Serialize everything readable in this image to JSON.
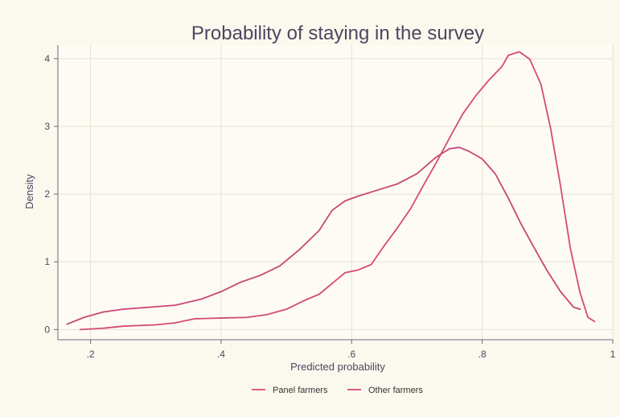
{
  "chart_data": {
    "type": "line",
    "title": "Probability of staying in the survey",
    "xlabel": "Predicted probability",
    "ylabel": "Density",
    "xlim": [
      0.15,
      1.0
    ],
    "ylim": [
      -0.15,
      4.2
    ],
    "xticks": [
      0.2,
      0.4,
      0.6,
      0.8,
      1.0
    ],
    "xtick_labels": [
      ".2",
      ".4",
      ".6",
      ".8",
      "1"
    ],
    "yticks": [
      0,
      1,
      2,
      3,
      4
    ],
    "ytick_labels": [
      "0",
      "1",
      "2",
      "3",
      "4"
    ],
    "grid": true,
    "legend_position": "bottom",
    "colors": {
      "background": "#fbf8ee",
      "panel": "#fdfbf3",
      "grid": "#e6e1d6",
      "axis": "#6e6878",
      "text": "#4f4560",
      "series_1": "#d64b72",
      "series_2": "#c84678"
    },
    "series": [
      {
        "name": "Panel farmers",
        "color": "#d64b72",
        "points": [
          [
            0.184,
            0.0
          ],
          [
            0.22,
            0.02
          ],
          [
            0.25,
            0.05
          ],
          [
            0.3,
            0.07
          ],
          [
            0.33,
            0.1
          ],
          [
            0.36,
            0.16
          ],
          [
            0.4,
            0.17
          ],
          [
            0.44,
            0.18
          ],
          [
            0.47,
            0.22
          ],
          [
            0.5,
            0.3
          ],
          [
            0.53,
            0.44
          ],
          [
            0.55,
            0.52
          ],
          [
            0.57,
            0.68
          ],
          [
            0.59,
            0.84
          ],
          [
            0.61,
            0.88
          ],
          [
            0.63,
            0.96
          ],
          [
            0.65,
            1.24
          ],
          [
            0.67,
            1.5
          ],
          [
            0.69,
            1.78
          ],
          [
            0.71,
            2.13
          ],
          [
            0.73,
            2.47
          ],
          [
            0.75,
            2.83
          ],
          [
            0.77,
            3.18
          ],
          [
            0.79,
            3.45
          ],
          [
            0.81,
            3.68
          ],
          [
            0.83,
            3.88
          ],
          [
            0.84,
            4.05
          ],
          [
            0.857,
            4.1
          ],
          [
            0.873,
            3.99
          ],
          [
            0.89,
            3.62
          ],
          [
            0.905,
            2.96
          ],
          [
            0.92,
            2.12
          ],
          [
            0.935,
            1.2
          ],
          [
            0.95,
            0.54
          ],
          [
            0.962,
            0.18
          ],
          [
            0.972,
            0.12
          ]
        ]
      },
      {
        "name": "Other farmers",
        "color": "#c84678",
        "points": [
          [
            0.164,
            0.08
          ],
          [
            0.19,
            0.18
          ],
          [
            0.22,
            0.26
          ],
          [
            0.25,
            0.3
          ],
          [
            0.29,
            0.33
          ],
          [
            0.33,
            0.36
          ],
          [
            0.37,
            0.45
          ],
          [
            0.4,
            0.56
          ],
          [
            0.43,
            0.7
          ],
          [
            0.46,
            0.8
          ],
          [
            0.49,
            0.94
          ],
          [
            0.52,
            1.18
          ],
          [
            0.55,
            1.46
          ],
          [
            0.57,
            1.76
          ],
          [
            0.59,
            1.9
          ],
          [
            0.61,
            1.97
          ],
          [
            0.64,
            2.06
          ],
          [
            0.67,
            2.15
          ],
          [
            0.7,
            2.3
          ],
          [
            0.73,
            2.55
          ],
          [
            0.75,
            2.67
          ],
          [
            0.765,
            2.69
          ],
          [
            0.78,
            2.63
          ],
          [
            0.8,
            2.52
          ],
          [
            0.82,
            2.3
          ],
          [
            0.84,
            1.94
          ],
          [
            0.86,
            1.55
          ],
          [
            0.88,
            1.2
          ],
          [
            0.9,
            0.86
          ],
          [
            0.92,
            0.56
          ],
          [
            0.94,
            0.33
          ],
          [
            0.95,
            0.3
          ]
        ]
      }
    ]
  }
}
